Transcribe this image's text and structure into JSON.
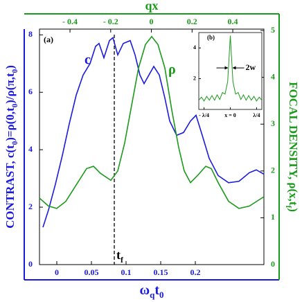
{
  "chart_data": [
    {
      "type": "line",
      "xlabel": [
        "ω",
        "q",
        "t",
        "0"
      ],
      "x2label": "qx",
      "ylabel": [
        "CONTRAST,  c(t",
        "0",
        ")=ρ(0,t",
        "0",
        ")/ρ(π,t",
        "0",
        ")"
      ],
      "y2label": [
        "FOCAL  DENSITY,  ρ(x,t",
        "f",
        ")"
      ],
      "panel_label": "(a)",
      "marker": {
        "x": 0.083,
        "label": [
          "t",
          "f"
        ]
      },
      "xlim": [
        -0.025,
        0.299
      ],
      "xticks": [
        0,
        0.05,
        0.1,
        0.15,
        0.2
      ],
      "x2lim": [
        -0.55,
        0.553
      ],
      "x2ticks": [
        {
          "value": -0.4,
          "label": "- 0.4"
        },
        {
          "value": -0.2,
          "label": "- 0.2"
        },
        0,
        0.2,
        0.4
      ],
      "ylim": [
        0,
        8.2
      ],
      "yticks": [
        0,
        2,
        4,
        6,
        8
      ],
      "y2lim": [
        0,
        5.03
      ],
      "y2ticks": [
        0,
        1,
        2,
        3,
        4,
        5
      ],
      "series": [
        {
          "name": "c",
          "color": "#1a1adf",
          "x": [
            -0.02,
            -0.012,
            -0.002,
            0.008,
            0.018,
            0.028,
            0.038,
            0.048,
            0.056,
            0.061,
            0.068,
            0.076,
            0.081,
            0.088,
            0.096,
            0.106,
            0.113,
            0.12,
            0.126,
            0.133,
            0.14,
            0.148,
            0.156,
            0.163,
            0.173,
            0.183,
            0.193,
            0.201,
            0.21,
            0.22,
            0.233,
            0.248,
            0.263,
            0.278,
            0.288,
            0.299
          ],
          "values": [
            1.3,
            1.9,
            2.8,
            3.8,
            4.9,
            5.9,
            6.6,
            7.0,
            7.6,
            7.7,
            7.2,
            7.8,
            7.9,
            7.3,
            7.7,
            7.8,
            7.3,
            6.6,
            6.3,
            6.6,
            6.9,
            6.6,
            5.8,
            5.0,
            4.5,
            4.6,
            5.0,
            5.2,
            4.5,
            3.7,
            3.1,
            2.85,
            2.9,
            3.2,
            3.3,
            3.15
          ]
        },
        {
          "name": "ρ",
          "color": "#1a9a1a",
          "axis": "y2",
          "x": [
            -0.025,
            -0.012,
            0,
            0.013,
            0.028,
            0.043,
            0.053,
            0.063,
            0.078,
            0.088,
            0.098,
            0.108,
            0.118,
            0.128,
            0.137,
            0.146,
            0.156,
            0.166,
            0.176,
            0.184,
            0.193,
            0.203,
            0.215,
            0.223,
            0.233,
            0.248,
            0.263,
            0.278,
            0.299
          ],
          "values": [
            1.42,
            1.25,
            1.2,
            1.35,
            1.7,
            2.05,
            2.1,
            1.95,
            1.8,
            2.0,
            2.6,
            3.4,
            4.2,
            4.7,
            4.87,
            4.7,
            4.2,
            3.3,
            2.5,
            2.0,
            1.75,
            1.9,
            2.1,
            2.05,
            1.75,
            1.35,
            1.2,
            1.25,
            1.45
          ]
        }
      ]
    },
    {
      "type": "line",
      "panel_label": "(b)",
      "annotation": "2w",
      "xlim": [
        -0.3,
        0.3
      ],
      "xticks": [
        {
          "value": -0.25,
          "label": "- λ/4"
        },
        {
          "value": 0,
          "label": "x = 0"
        },
        {
          "value": 0.25,
          "label": "λ/4"
        }
      ],
      "ylim": [
        0,
        5
      ],
      "yticks": [
        2,
        4
      ],
      "series": [
        {
          "color": "#1a9a1a",
          "x": [
            -0.3,
            -0.275,
            -0.25,
            -0.225,
            -0.2,
            -0.175,
            -0.15,
            -0.125,
            -0.1,
            -0.075,
            -0.05,
            -0.025,
            0,
            0.025,
            0.05,
            0.075,
            0.1,
            0.125,
            0.15,
            0.175,
            0.2,
            0.225,
            0.25,
            0.275,
            0.3
          ],
          "values": [
            0.6,
            0.8,
            0.55,
            0.85,
            0.6,
            0.9,
            0.6,
            0.95,
            0.65,
            1.1,
            1.0,
            1.8,
            4.8,
            1.8,
            1.0,
            1.1,
            0.65,
            0.95,
            0.6,
            0.9,
            0.6,
            0.85,
            0.55,
            0.8,
            0.6
          ]
        }
      ]
    }
  ]
}
